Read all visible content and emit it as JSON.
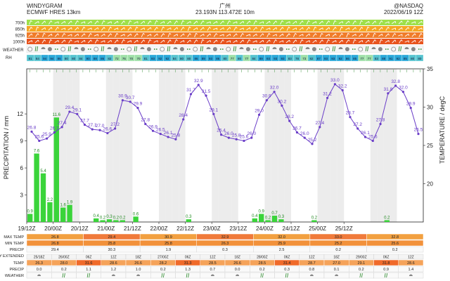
{
  "header": {
    "left_line1": "WINDYGRAM",
    "left_line2": "ECMWF HRES 13km",
    "center_line1": "广州",
    "center_line2": "23.193N 113.472E 10m",
    "right_line1": "@NASDAQ",
    "right_line2": "2022/06/19 12Z"
  },
  "top_rows": {
    "wind_levels": [
      "700h",
      "850h",
      "925h",
      "1000h"
    ],
    "weather_label": "WEATHER",
    "rh_label": "RH",
    "rh_values": [
      81,
      84,
      94,
      94,
      86,
      80,
      80,
      84,
      90,
      88,
      86,
      82,
      72,
      76,
      70,
      70,
      81,
      93,
      92,
      92,
      84,
      80,
      80,
      86,
      89,
      93,
      86,
      80,
      77,
      80,
      77,
      84,
      89,
      93,
      93,
      93,
      83,
      78,
      73,
      82,
      87,
      93,
      93,
      92,
      86,
      85,
      77,
      77,
      83,
      88,
      91,
      92,
      85,
      80,
      80
    ]
  },
  "chart_data": {
    "type": "bar+line",
    "x_ticks": [
      "19/12Z",
      "20/00Z",
      "20/12Z",
      "21/00Z",
      "21/12Z",
      "22/00Z",
      "22/12Z",
      "23/00Z",
      "23/12Z",
      "24/00Z",
      "24/12Z",
      "25/00Z",
      "25/12Z"
    ],
    "left_axis": {
      "label": "PRECIPITATION / mm",
      "ticks": [
        3,
        6,
        9,
        12
      ],
      "range": [
        0,
        17
      ]
    },
    "right_axis": {
      "label": "TEMPERATURE / degC",
      "ticks": [
        20,
        25,
        30,
        35
      ],
      "range": [
        15,
        35
      ]
    },
    "precip_bars": [
      {
        "t": 0,
        "v": 0.9
      },
      {
        "t": 1,
        "v": 7.6
      },
      {
        "t": 2,
        "v": 5.4
      },
      {
        "t": 3,
        "v": 2.2
      },
      {
        "t": 4,
        "v": 11.6
      },
      {
        "t": 5,
        "v": 1.6
      },
      {
        "t": 6,
        "v": 1.9
      },
      {
        "t": 10,
        "v": 0.4
      },
      {
        "t": 11,
        "v": 0.2
      },
      {
        "t": 12,
        "v": 0.3
      },
      {
        "t": 13,
        "v": 0.2
      },
      {
        "t": 14,
        "v": 0.2
      },
      {
        "t": 16,
        "v": 0.6
      },
      {
        "t": 24,
        "v": 0.3
      },
      {
        "t": 34,
        "v": 0.4
      },
      {
        "t": 35,
        "v": 0.9
      },
      {
        "t": 36,
        "v": 0.2
      },
      {
        "t": 37,
        "v": 0.7
      },
      {
        "t": 38,
        "v": 0.3
      },
      {
        "t": 43,
        "v": 0.2
      },
      {
        "t": 54,
        "v": 0.2
      }
    ],
    "temperature": [
      26.8,
      25.6,
      25.9,
      26.7,
      27.4,
      29.4,
      29.1,
      27.7,
      27.1,
      27.0,
      26.6,
      27.2,
      30.9,
      30.7,
      29.9,
      27.8,
      26.9,
      26.5,
      26.1,
      25.8,
      28.4,
      31.7,
      32.9,
      31.5,
      29.1,
      26.4,
      26.0,
      25.8,
      25.6,
      26.0,
      29.0,
      30.9,
      32.0,
      30.2,
      28.2,
      26.7,
      26.0,
      25.2,
      27.4,
      31.2,
      33.0,
      32.2,
      28.7,
      27.2,
      26.1,
      25.6,
      27.8,
      31.8,
      32.8,
      32.0,
      29.9,
      26.5
    ],
    "temperature_labels": [
      26.8,
      25.6,
      25.9,
      26.7,
      27.4,
      29.4,
      29.1,
      27.7,
      27.1,
      27.0,
      26.6,
      27.2,
      30.9,
      30.7,
      29.9,
      27.8,
      26.9,
      26.5,
      26.1,
      25.8,
      28.4,
      31.7,
      32.9,
      31.5,
      29.1,
      26.4,
      26.0,
      25.8,
      25.6,
      26.0,
      29.0,
      30.9,
      32.0,
      30.2,
      28.2,
      26.7,
      26.0,
      25.2,
      27.4,
      31.2,
      33.0,
      32.2,
      28.7,
      27.2,
      26.1,
      25.6,
      27.8,
      31.8,
      32.8,
      32.0,
      29.9,
      26.5
    ],
    "bar_color": "#3ad43a",
    "line_color": "#6a3dc8"
  },
  "table": {
    "row_labels": {
      "max_temp": "MAX TEMP",
      "min_temp": "MIN TEMP",
      "precip": "PRECIP",
      "ext_title": "10-DAY EXTENDED",
      "ext_temp": "TEMP",
      "ext_precip": "PRECIP",
      "weather": "WEATHER"
    },
    "daily": [
      {
        "max": "26.8",
        "min": "26.8",
        "precip": "29.4"
      },
      {
        "max": "29.4",
        "min": "25.8",
        "precip": "30.3"
      },
      {
        "max": "30.9",
        "min": "25.8",
        "precip": "1.9"
      },
      {
        "max": "32.9",
        "min": "26.3",
        "precip": "0.3"
      },
      {
        "max": "32.0",
        "min": "25.9",
        "precip": "2.5"
      },
      {
        "max": "33.0",
        "min": "25.2",
        "precip": "0.2"
      },
      {
        "max": "32.8",
        "min": "25.6",
        "precip": "0.2"
      }
    ],
    "ext_times": [
      "25/18Z",
      "26/00Z",
      "06Z",
      "12Z",
      "18Z",
      "27/00Z",
      "06Z",
      "12Z",
      "18Z",
      "28/00Z",
      "06Z",
      "12Z",
      "18Z",
      "29/00Z",
      "06Z",
      "12Z"
    ],
    "ext_temps": [
      "26.3",
      "28.0",
      "31.6",
      "28.6",
      "26.6",
      "28.2",
      "31.3",
      "28.5",
      "26.6",
      "28.5",
      "31.4",
      "28.7",
      "27.0",
      "29.1",
      "31.8",
      "28.6"
    ],
    "ext_precip": [
      "0.0",
      "0.2",
      "1.1",
      "1.2",
      "1.0",
      "0.2",
      "1.3",
      "0.7",
      "0.0",
      "0.2",
      "0.3",
      "0.8",
      "0.1",
      "0.2",
      "0.9",
      "1.4"
    ]
  },
  "colors": {
    "wind_700": "#9ee04a",
    "wind_850": "#f5a623",
    "wind_925": "#f07c2a",
    "wind_1000": "#e8541e",
    "max_temp_bg": "#f07a3a",
    "min_temp_bg": "#f2913a",
    "max_temp_mid": "#f2a040",
    "rh_dark": "#2aa8d8",
    "rh_light": "#9fe0a8",
    "weekend_shade": "#ececec"
  }
}
